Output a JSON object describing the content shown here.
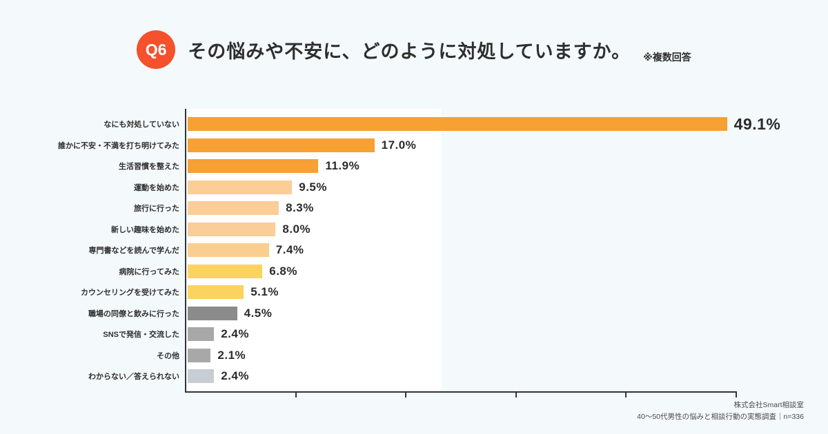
{
  "page": {
    "background": "#F4F9FB"
  },
  "header": {
    "badge": "Q6",
    "badge_color": "#F4512C",
    "title": "その悩みや不安に、どのように対処していますか。",
    "note": "※複数回答"
  },
  "chart_data": {
    "type": "bar",
    "orientation": "horizontal",
    "title": "その悩みや不安に、どのように対処していますか。（複数回答）",
    "categories": [
      "なにも対処していない",
      "誰かに不安・不満を打ち明けてみた",
      "生活習慣を整えた",
      "運動を始めた",
      "旅行に行った",
      "新しい趣味を始めた",
      "専門書などを読んで学んだ",
      "病院に行ってみた",
      "カウンセリングを受けてみた",
      "職場の同僚と飲みに行った",
      "SNSで発信・交流した",
      "その他",
      "わからない／答えられない"
    ],
    "values": [
      49.1,
      17.0,
      11.9,
      9.5,
      8.3,
      8.0,
      7.4,
      6.8,
      5.1,
      4.5,
      2.4,
      2.1,
      2.4
    ],
    "colors": [
      "#F7A033",
      "#F7A033",
      "#F7A033",
      "#FBCD97",
      "#FBCD97",
      "#FBCD97",
      "#F9CE8F",
      "#FBD35E",
      "#FBD35E",
      "#8B8B8B",
      "#A8A8A8",
      "#A8A8A8",
      "#C7CDD2"
    ],
    "xlim": [
      0,
      50
    ],
    "ticks": [
      10,
      20,
      30,
      40,
      50
    ],
    "xlabel": "",
    "ylabel": "",
    "legend": false,
    "grid": false,
    "value_suffix": "%"
  },
  "footer": {
    "line1": "株式会社Smart相談室",
    "line2": "40〜50代男性の悩みと相談行動の実態調査｜n=336"
  }
}
